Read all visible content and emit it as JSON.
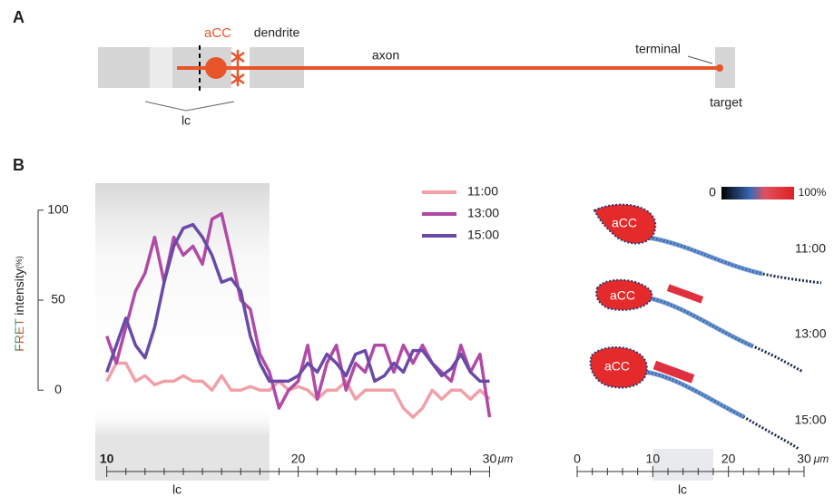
{
  "panel_a": {
    "label": "A",
    "cell": "aCC",
    "dendrite": "dendrite",
    "axon": "axon",
    "terminal": "terminal",
    "target": "target",
    "lc": "lc"
  },
  "panel_b_label": "B",
  "chart_data": {
    "type": "line",
    "ylabel": {
      "colored": "FRET",
      "text": "intensity",
      "unit": "(%)"
    },
    "x_unit": "μm",
    "x": [
      10,
      10.5,
      11,
      11.5,
      12,
      12.5,
      13,
      13.5,
      14,
      14.5,
      15,
      15.5,
      16,
      16.5,
      17,
      17.5,
      18,
      18.5,
      19,
      19.5,
      20,
      20.5,
      21,
      21.5,
      22,
      22.5,
      23,
      23.5,
      24,
      24.5,
      25,
      25.5,
      26,
      26.5,
      27,
      27.5,
      28,
      28.5,
      29,
      29.5,
      30
    ],
    "series": [
      {
        "name": "11:00",
        "color": "#f2a0a8",
        "values": [
          5,
          15,
          15,
          5,
          8,
          3,
          5,
          5,
          8,
          5,
          5,
          0,
          8,
          0,
          0,
          2,
          0,
          0,
          5,
          0,
          2,
          0,
          -5,
          0,
          0,
          5,
          -5,
          0,
          0,
          0,
          0,
          -10,
          -15,
          -10,
          0,
          -5,
          0,
          0,
          -5,
          0,
          -5
        ]
      },
      {
        "name": "13:00",
        "color": "#b04aa6",
        "values": [
          30,
          15,
          35,
          55,
          65,
          85,
          60,
          85,
          75,
          80,
          70,
          95,
          98,
          75,
          50,
          45,
          20,
          10,
          -10,
          0,
          5,
          25,
          -5,
          15,
          25,
          0,
          15,
          10,
          25,
          25,
          10,
          25,
          15,
          25,
          15,
          10,
          5,
          25,
          10,
          20,
          -15
        ]
      },
      {
        "name": "15:00",
        "color": "#6a4aa8",
        "values": [
          10,
          25,
          40,
          25,
          18,
          35,
          60,
          80,
          90,
          92,
          85,
          75,
          60,
          62,
          55,
          30,
          15,
          5,
          5,
          5,
          8,
          15,
          10,
          20,
          15,
          8,
          20,
          22,
          5,
          8,
          15,
          10,
          22,
          22,
          15,
          8,
          12,
          20,
          10,
          5,
          5
        ]
      }
    ],
    "xlim": [
      9.4,
      30.5
    ],
    "ylim": [
      -20,
      115
    ],
    "xticks": [
      10,
      20,
      30
    ],
    "xticks_minor": [
      11,
      12,
      13,
      14,
      15,
      16,
      17,
      18,
      19,
      21,
      22,
      23,
      24,
      25,
      26,
      27,
      28,
      29
    ],
    "yticks": [
      0,
      50,
      100
    ],
    "shaded_region": {
      "label": "lc",
      "range": [
        9.4,
        18.5
      ]
    },
    "legend": "top-right"
  },
  "image_panel": {
    "colorbar_labels": [
      "0",
      "100%"
    ],
    "cells": [
      {
        "label": "aCC",
        "time": "11:00"
      },
      {
        "label": "aCC",
        "time": "13:00"
      },
      {
        "label": "aCC",
        "time": "15:00"
      }
    ],
    "xlim": [
      0,
      30
    ],
    "xticks": [
      0,
      10,
      20,
      30
    ],
    "xticks_minor": [
      2,
      4,
      6,
      8,
      12,
      14,
      16,
      18,
      22,
      24,
      26,
      28
    ],
    "x_unit": "μm",
    "shaded_region": {
      "label": "lc",
      "range": [
        10,
        18
      ]
    }
  }
}
